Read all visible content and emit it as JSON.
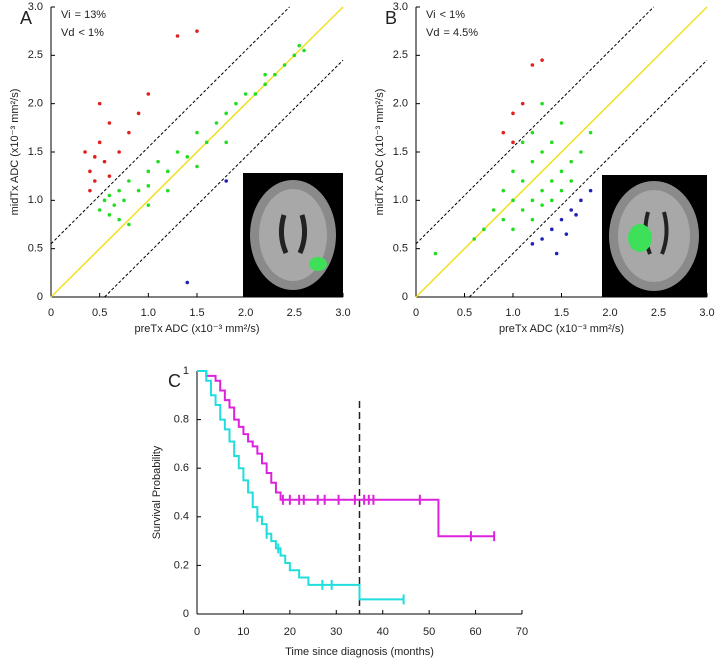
{
  "chart_data": [
    {
      "type": "scatter",
      "panel_label": "A",
      "x_label": "preTx ADC (x10⁻³ mm²/s)",
      "y_label": "midTx ADC (x10⁻³ mm²/s)",
      "annotations": [
        [
          {
            "text": "Vi",
            "color": "#e02020"
          },
          {
            "text": "= 13%"
          }
        ],
        [
          {
            "text": "Vd",
            "color": "#2222bb"
          },
          {
            "text": "< 1%"
          }
        ]
      ],
      "xlim": [
        0,
        3
      ],
      "ylim": [
        0,
        3
      ],
      "xticks": [
        0,
        0.5,
        {
          "value": 1,
          "label": "1.0"
        },
        1.5,
        {
          "value": 2,
          "label": "2.0"
        },
        2.5,
        {
          "value": 3,
          "label": "3.0"
        }
      ],
      "yticks": [
        0,
        0.5,
        {
          "value": 1,
          "label": "1.0"
        },
        1.5,
        {
          "value": 2,
          "label": "2.0"
        },
        2.5,
        {
          "value": 3,
          "label": "3.0"
        }
      ],
      "reference_lines": [
        {
          "intercept": 0,
          "color": "#f0e020",
          "dashed": false
        },
        {
          "intercept": 0.55,
          "color": "#000000",
          "dashed": true
        },
        {
          "intercept": -0.55,
          "color": "#000000",
          "dashed": true
        }
      ],
      "series": [
        {
          "color": "#22dd22",
          "x": [
            0.5,
            0.55,
            0.6,
            0.6,
            0.65,
            0.7,
            0.7,
            0.75,
            0.8,
            0.9,
            1.0,
            1.0,
            1.1,
            1.2,
            1.3,
            1.4,
            1.5,
            1.6,
            1.7,
            1.8,
            1.9,
            2.0,
            2.1,
            2.2,
            2.3,
            2.4,
            2.5,
            2.55,
            2.6,
            1.2,
            1.5,
            0.8,
            1.0,
            1.8,
            2.2
          ],
          "values": [
            0.9,
            1.0,
            0.85,
            1.05,
            0.95,
            1.1,
            0.8,
            1.0,
            1.2,
            1.1,
            1.3,
            0.95,
            1.4,
            1.3,
            1.5,
            1.45,
            1.7,
            1.6,
            1.8,
            1.9,
            2.0,
            2.1,
            2.1,
            2.3,
            2.3,
            2.4,
            2.5,
            2.6,
            2.55,
            1.1,
            1.35,
            0.75,
            1.15,
            1.6,
            2.2
          ]
        },
        {
          "color": "#e02020",
          "x": [
            0.35,
            0.4,
            0.45,
            0.5,
            0.55,
            0.6,
            0.4,
            0.5,
            0.7,
            0.8,
            0.9,
            1.0,
            0.45,
            0.6,
            1.3,
            1.5
          ],
          "values": [
            1.5,
            1.3,
            1.2,
            1.6,
            1.4,
            1.8,
            1.1,
            2.0,
            1.5,
            1.7,
            1.9,
            2.1,
            1.45,
            1.25,
            2.7,
            2.75
          ]
        },
        {
          "color": "#2222bb",
          "x": [
            1.8,
            1.4
          ],
          "values": [
            1.2,
            0.15
          ]
        }
      ]
    },
    {
      "type": "scatter",
      "panel_label": "B",
      "x_label": "preTx ADC (x10⁻³ mm²/s)",
      "y_label": "midTx ADC (x10⁻³ mm²/s)",
      "annotations": [
        [
          {
            "text": "Vi",
            "color": "#e02020"
          },
          {
            "text": "< 1%"
          }
        ],
        [
          {
            "text": "Vd",
            "color": "#2222bb"
          },
          {
            "text": "= 4.5%"
          }
        ]
      ],
      "xlim": [
        0,
        3
      ],
      "ylim": [
        0,
        3
      ],
      "xticks": [
        0,
        0.5,
        {
          "value": 1,
          "label": "1.0"
        },
        1.5,
        {
          "value": 2,
          "label": "2.0"
        },
        2.5,
        {
          "value": 3,
          "label": "3.0"
        }
      ],
      "yticks": [
        0,
        0.5,
        {
          "value": 1,
          "label": "1.0"
        },
        1.5,
        {
          "value": 2,
          "label": "2.0"
        },
        2.5,
        {
          "value": 3,
          "label": "3.0"
        }
      ],
      "reference_lines": [
        {
          "intercept": 0,
          "color": "#f0e020",
          "dashed": false
        },
        {
          "intercept": 0.55,
          "color": "#000000",
          "dashed": true
        },
        {
          "intercept": -0.55,
          "color": "#000000",
          "dashed": true
        }
      ],
      "series": [
        {
          "color": "#22dd22",
          "x": [
            0.8,
            0.9,
            1.0,
            1.0,
            1.1,
            1.1,
            1.2,
            1.2,
            1.3,
            1.3,
            1.4,
            1.4,
            1.5,
            1.5,
            1.6,
            1.7,
            1.2,
            1.3,
            1.0,
            1.4,
            0.6,
            0.9,
            1.1,
            1.5,
            1.8,
            1.3,
            0.2,
            0.7,
            1.6,
            1.2
          ],
          "values": [
            0.9,
            1.1,
            1.0,
            1.3,
            0.9,
            1.2,
            1.0,
            1.4,
            1.1,
            1.5,
            1.2,
            1.6,
            1.3,
            1.1,
            1.4,
            1.5,
            0.8,
            0.95,
            0.7,
            1.0,
            0.6,
            0.8,
            1.6,
            1.8,
            1.7,
            2.0,
            0.45,
            0.7,
            1.2,
            1.7
          ]
        },
        {
          "color": "#e02020",
          "x": [
            0.9,
            1.0,
            1.1,
            1.0,
            1.2,
            1.3
          ],
          "values": [
            1.7,
            1.9,
            2.0,
            1.6,
            2.4,
            2.45
          ]
        },
        {
          "color": "#2222bb",
          "x": [
            1.2,
            1.3,
            1.4,
            1.5,
            1.6,
            1.7,
            1.8,
            1.45,
            1.55,
            1.65
          ],
          "values": [
            0.55,
            0.6,
            0.7,
            0.8,
            0.9,
            1.0,
            1.1,
            0.45,
            0.65,
            0.85
          ]
        }
      ]
    },
    {
      "type": "line",
      "step": true,
      "panel_label": "C",
      "x_label": "Time since diagnosis (months)",
      "y_label": "Survival Probability",
      "xlim": [
        0,
        70
      ],
      "ylim": [
        0,
        1
      ],
      "xticks": [
        0,
        10,
        20,
        30,
        40,
        50,
        60,
        70
      ],
      "yticks": [
        0,
        0.2,
        0.4,
        0.6,
        0.8,
        1
      ],
      "reference_x": 35,
      "series": [
        {
          "color": "#dd22dd",
          "x": [
            0,
            2,
            4,
            5,
            6,
            7,
            8,
            9,
            10,
            11,
            12,
            13,
            14,
            15,
            16,
            17,
            18,
            52,
            64
          ],
          "values": [
            1,
            0.98,
            0.96,
            0.92,
            0.88,
            0.85,
            0.8,
            0.77,
            0.74,
            0.71,
            0.69,
            0.66,
            0.62,
            0.58,
            0.54,
            0.5,
            0.47,
            0.32,
            0.32
          ],
          "censored": {
            "x": [
              18.5,
              20,
              22,
              23,
              26,
              27.5,
              30.5,
              34,
              36,
              37,
              38,
              48,
              59,
              64
            ],
            "values": [
              0.47,
              0.47,
              0.47,
              0.47,
              0.47,
              0.47,
              0.47,
              0.47,
              0.47,
              0.47,
              0.47,
              0.47,
              0.32,
              0.32
            ]
          }
        },
        {
          "color": "#22dddd",
          "x": [
            0,
            2,
            3,
            4,
            5,
            6,
            7,
            8,
            9,
            10,
            11,
            12,
            13,
            14,
            15,
            16,
            17,
            18,
            19,
            20,
            22,
            24,
            35,
            44.5
          ],
          "values": [
            1,
            0.96,
            0.9,
            0.86,
            0.8,
            0.76,
            0.71,
            0.65,
            0.6,
            0.55,
            0.5,
            0.44,
            0.4,
            0.37,
            0.33,
            0.3,
            0.27,
            0.24,
            0.21,
            0.18,
            0.15,
            0.12,
            0.06,
            0.06
          ],
          "censored": {
            "x": [
              13,
              15,
              17.5,
              27,
              29,
              44.5
            ],
            "values": [
              0.4,
              0.33,
              0.27,
              0.12,
              0.12,
              0.06
            ]
          }
        }
      ]
    }
  ]
}
